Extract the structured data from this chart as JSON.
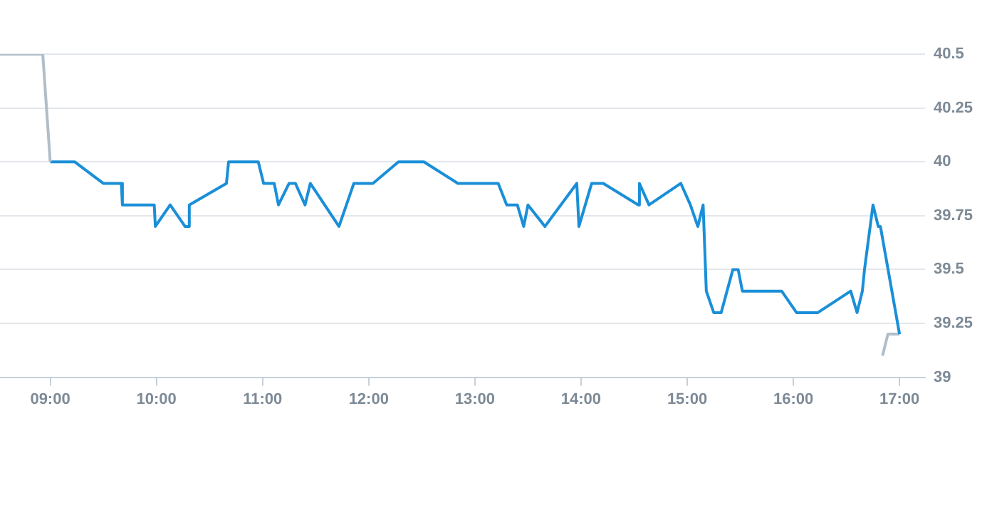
{
  "chart_data": {
    "type": "line",
    "xlim": [
      8.527,
      17.24
    ],
    "ylim": [
      39,
      40.5
    ],
    "xticks": [
      {
        "value": 9,
        "label": "09:00"
      },
      {
        "value": 10,
        "label": "10:00"
      },
      {
        "value": 11,
        "label": "11:00"
      },
      {
        "value": 12,
        "label": "12:00"
      },
      {
        "value": 13,
        "label": "13:00"
      },
      {
        "value": 14,
        "label": "14:00"
      },
      {
        "value": 15,
        "label": "15:00"
      },
      {
        "value": 16,
        "label": "16:00"
      },
      {
        "value": 17,
        "label": "17:00"
      }
    ],
    "yticks": [
      39,
      39.25,
      39.5,
      39.75,
      40,
      40.25,
      40.5
    ],
    "grid": "y",
    "legend": false,
    "marker": "none",
    "line_style": "solid",
    "series": [
      {
        "color": "#b0bec9",
        "x": [
          8.527,
          8.93,
          9.0
        ],
        "values": [
          40.5,
          40.5,
          40.0
        ]
      },
      {
        "color": "#1a8fd8",
        "x": [
          9.0,
          9.23,
          9.5,
          9.67,
          9.68,
          9.98,
          9.99,
          10.13,
          10.27,
          10.3,
          10.31,
          10.66,
          10.68,
          10.96,
          11.01,
          11.11,
          11.15,
          11.25,
          11.31,
          11.4,
          11.45,
          11.72,
          11.86,
          12.04,
          12.28,
          12.52,
          12.84,
          13.22,
          13.3,
          13.4,
          13.46,
          13.5,
          13.66,
          13.96,
          13.98,
          14.1,
          14.21,
          14.54,
          14.55,
          14.64,
          14.94,
          15.03,
          15.1,
          15.15,
          15.18,
          15.25,
          15.32,
          15.43,
          15.48,
          15.52,
          15.89,
          16.03,
          16.23,
          16.54,
          16.6,
          16.65,
          16.67,
          16.75,
          16.8,
          16.82,
          17.0
        ],
        "values": [
          40.0,
          40.0,
          39.9,
          39.9,
          39.8,
          39.8,
          39.7,
          39.8,
          39.7,
          39.7,
          39.8,
          39.9,
          40.0,
          40.0,
          39.9,
          39.9,
          39.8,
          39.9,
          39.9,
          39.8,
          39.9,
          39.7,
          39.9,
          39.9,
          40.0,
          40.0,
          39.9,
          39.9,
          39.8,
          39.8,
          39.7,
          39.8,
          39.7,
          39.9,
          39.7,
          39.9,
          39.9,
          39.8,
          39.9,
          39.8,
          39.9,
          39.8,
          39.7,
          39.8,
          39.4,
          39.3,
          39.3,
          39.5,
          39.5,
          39.4,
          39.4,
          39.3,
          39.3,
          39.4,
          39.3,
          39.4,
          39.5,
          39.8,
          39.7,
          39.7,
          39.2
        ]
      },
      {
        "color": "#b0bec9",
        "x": [
          16.84,
          16.89,
          17.0
        ],
        "values": [
          39.1,
          39.2,
          39.2
        ]
      }
    ]
  }
}
